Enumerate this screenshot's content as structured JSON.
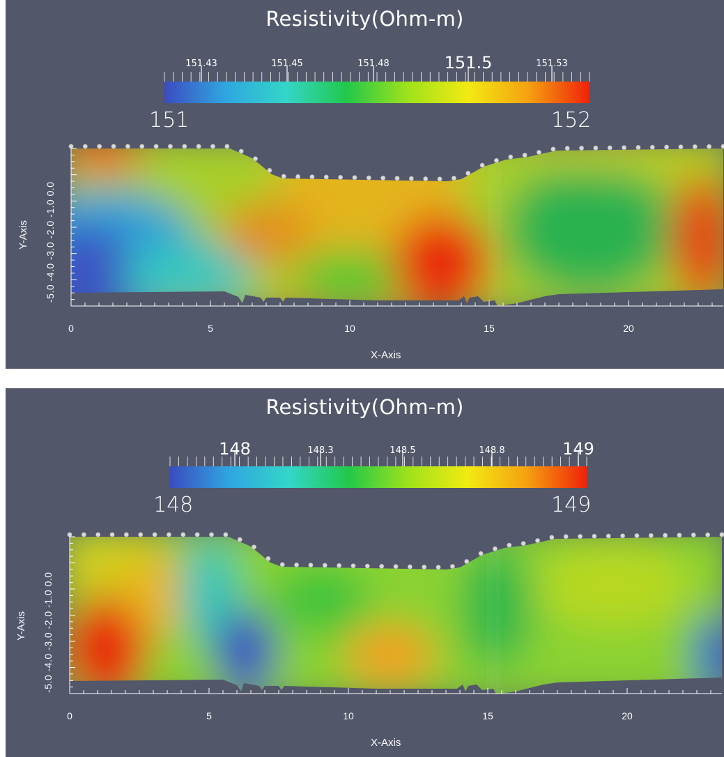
{
  "chart_data": [
    {
      "type": "heatmap",
      "title": "Resistivity(Ohm-m)",
      "xlabel": "X-Axis",
      "ylabel": "Y-Axis",
      "xlim": [
        0,
        23.4
      ],
      "x_ticks": [
        "0",
        "5",
        "10",
        "15",
        "20"
      ],
      "y_tick_text": "-5.0 -4.0 -3.0 -2.0 -1.0 0.0",
      "colorbar": {
        "min_label": "151",
        "max_label": "152",
        "tick_labels": [
          "151.43",
          "151.45",
          "151.48",
          "151.5",
          "151.53"
        ],
        "colors": [
          "#3b4cc0",
          "#2fa6e0",
          "#33d6c8",
          "#22c84a",
          "#9ee21a",
          "#f2ea12",
          "#f5a010",
          "#ef2208"
        ]
      },
      "features": [
        {
          "x": 1.0,
          "depth": 0.3,
          "value": "high"
        },
        {
          "x": 0.3,
          "depth": 4.6,
          "value": "low"
        },
        {
          "x": 13.4,
          "depth": 4.2,
          "value": "high"
        },
        {
          "x": 22.6,
          "depth": 3.2,
          "value": "high"
        },
        {
          "x": 19.0,
          "depth": 2.5,
          "value": "medium-low"
        }
      ],
      "electrodes_count": 47
    },
    {
      "type": "heatmap",
      "title": "Resistivity(Ohm-m)",
      "xlabel": "X-Axis",
      "ylabel": "Y-Axis",
      "xlim": [
        0,
        23.4
      ],
      "x_ticks": [
        "0",
        "5",
        "10",
        "15",
        "20"
      ],
      "y_tick_text": "-5.0 -4.0 -3.0 -2.0 -1.0 0.0",
      "colorbar": {
        "min_label": "148",
        "max_label": "149",
        "tick_labels": [
          "148",
          "148.3",
          "148.5",
          "148.8",
          "149"
        ],
        "colors": [
          "#3b4cc0",
          "#2fa6e0",
          "#33d6c8",
          "#22c84a",
          "#9ee21a",
          "#f2ea12",
          "#f5a010",
          "#ef2208"
        ]
      },
      "features": [
        {
          "x": 1.3,
          "depth": 4.3,
          "value": "high"
        },
        {
          "x": 6.3,
          "depth": 4.6,
          "value": "low"
        },
        {
          "x": 11.5,
          "depth": 4.6,
          "value": "high"
        },
        {
          "x": 23.1,
          "depth": 4.2,
          "value": "low"
        }
      ],
      "electrodes_count": 47
    }
  ]
}
